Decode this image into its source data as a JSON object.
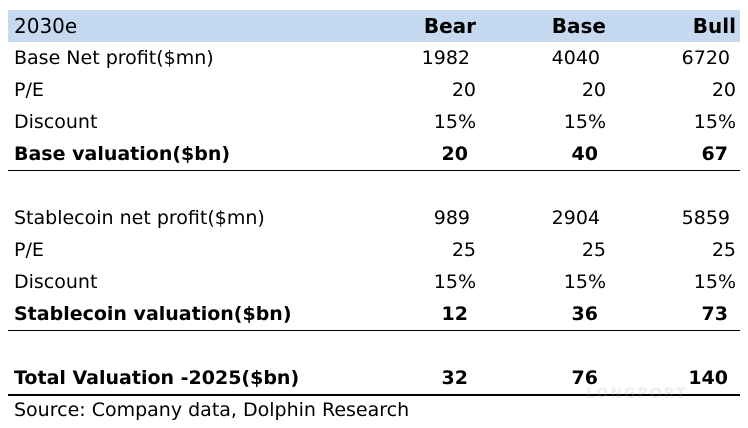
{
  "header": {
    "period": "2030e",
    "bear": "Bear",
    "base": "Base",
    "bull": "Bull"
  },
  "base_section": [
    {
      "label": "Base Net profit($mn)",
      "bear": "1982",
      "base": "4040",
      "bull": "6720"
    },
    {
      "label": "P/E",
      "bear": "20",
      "base": "20",
      "bull": "20"
    },
    {
      "label": "Discount",
      "bear": "15%",
      "base": "15%",
      "bull": "15%"
    },
    {
      "label": "Base valuation($bn)",
      "bear": "20",
      "base": "40",
      "bull": "67"
    }
  ],
  "stablecoin_section": [
    {
      "label": "Stablecoin net profit($mn)",
      "bear": "989",
      "base": "2904",
      "bull": "5859"
    },
    {
      "label": "P/E",
      "bear": "25",
      "base": "25",
      "bull": "25"
    },
    {
      "label": "Discount",
      "bear": "15%",
      "base": "15%",
      "bull": "15%"
    },
    {
      "label": "Stablecoin valuation($bn)",
      "bear": "12",
      "base": "36",
      "bull": "73"
    }
  ],
  "total": {
    "label": "Total Valuation -2025($bn)",
    "bear": "32",
    "base": "76",
    "bull": "140"
  },
  "source": "Source: Company data, Dolphin Research",
  "watermark": "LONGPORT"
}
